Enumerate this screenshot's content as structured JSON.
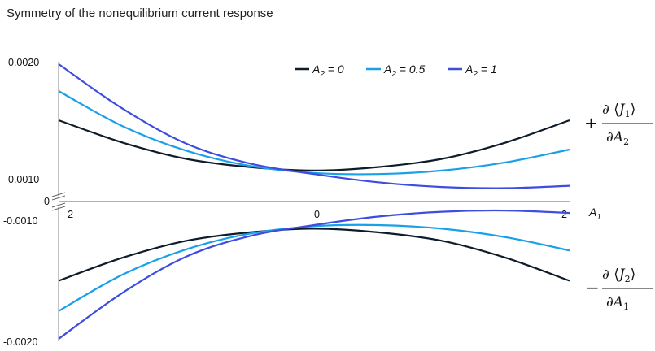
{
  "title": "Symmetry of the nonequilibrium current response",
  "chart_data": {
    "type": "line",
    "xlabel": "A",
    "xlabel_sub": "1",
    "x_ticks": [
      "-2",
      "0",
      "2"
    ],
    "xlim": [
      -2,
      2
    ],
    "y_ticks_upper": [
      "0.0020",
      "0.0010"
    ],
    "y_tick_zero": "0",
    "y_ticks_lower": [
      "-0.0010",
      "-0.0020"
    ],
    "y_axis_break": true,
    "upper_ylim": [
      0.0007,
      0.002
    ],
    "lower_ylim": [
      -0.002,
      -0.0007
    ],
    "legend_position": "top-center",
    "upper_panel_label": {
      "sign": "+",
      "numerator": "J",
      "numerator_sub": "1",
      "denominator": "A",
      "denominator_sub": "2"
    },
    "lower_panel_label": {
      "sign": "−",
      "numerator": "J",
      "numerator_sub": "2",
      "denominator": "A",
      "denominator_sub": "1"
    },
    "x": [
      -2,
      -1.5,
      -1,
      -0.5,
      0,
      0.5,
      1,
      1.5,
      2
    ],
    "series": [
      {
        "name_main": "A",
        "name_sub": "2",
        "name_rest": " = 0",
        "color": "#0d1b2a",
        "upper": [
          0.0015,
          0.00131,
          0.00117,
          0.0011,
          0.00107,
          0.0011,
          0.00117,
          0.00131,
          0.0015
        ],
        "lower": [
          -0.0015,
          -0.00131,
          -0.00117,
          -0.0011,
          -0.00107,
          -0.0011,
          -0.00117,
          -0.00131,
          -0.0015
        ]
      },
      {
        "name_main": "A",
        "name_sub": "2",
        "name_rest": " = 0.5",
        "color": "#1aa0e8",
        "upper": [
          0.00175,
          0.00145,
          0.00124,
          0.00111,
          0.00105,
          0.00104,
          0.00107,
          0.00114,
          0.00125
        ],
        "lower": [
          -0.00175,
          -0.00145,
          -0.00124,
          -0.00111,
          -0.00105,
          -0.00104,
          -0.00107,
          -0.00114,
          -0.00125
        ]
      },
      {
        "name_main": "A",
        "name_sub": "2",
        "name_rest": " = 1",
        "color": "#3d4de0",
        "upper": [
          0.00198,
          0.0016,
          0.0013,
          0.00113,
          0.00104,
          0.00097,
          0.00093,
          0.00092,
          0.00094
        ],
        "lower": [
          -0.00198,
          -0.0016,
          -0.0013,
          -0.00113,
          -0.00104,
          -0.00097,
          -0.00093,
          -0.00092,
          -0.00094
        ]
      }
    ]
  }
}
